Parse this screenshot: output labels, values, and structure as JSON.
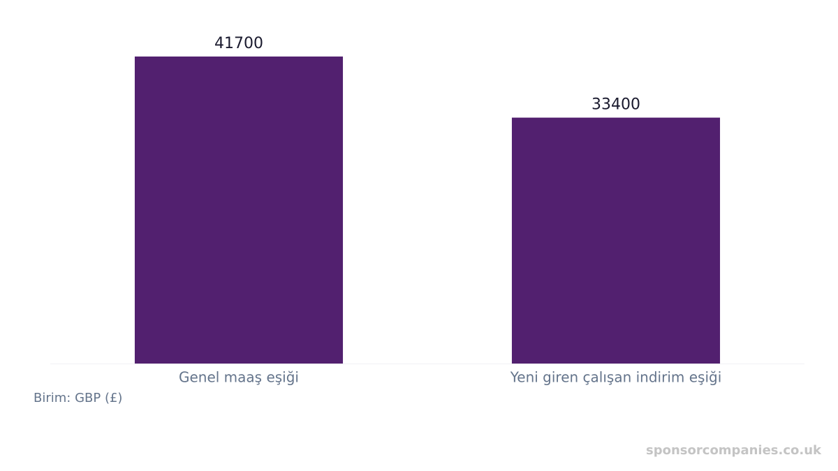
{
  "chart_data": {
    "type": "bar",
    "categories": [
      "Genel maaş eşiği",
      "Yeni giren çalışan indirim eşiği"
    ],
    "values": [
      41700,
      33400
    ],
    "color": "#52206f",
    "note": "Birim: GBP (£)",
    "watermark": "sponsorcompanies.co.uk"
  }
}
